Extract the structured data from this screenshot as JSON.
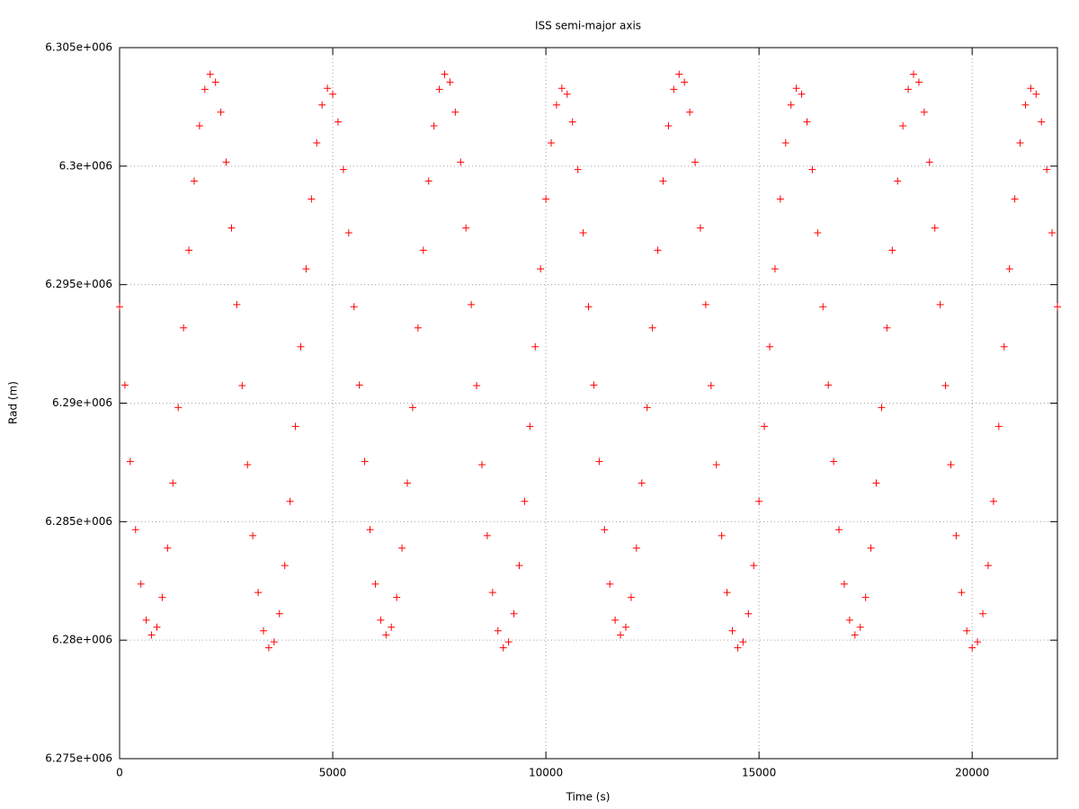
{
  "chart_data": {
    "type": "scatter",
    "title": "ISS semi-major axis",
    "x_label": "Time (s)",
    "y_label": "Rad (m)",
    "xlim": [
      0,
      22000
    ],
    "xticks": [
      0,
      5000,
      10000,
      15000,
      20000
    ],
    "ylim": [
      6275000,
      6305000
    ],
    "yticks": [
      {
        "value": 6275000,
        "label": "6.275e+006"
      },
      {
        "value": 6280000,
        "label": "6.28e+006"
      },
      {
        "value": 6285000,
        "label": "6.285e+006"
      },
      {
        "value": 6290000,
        "label": "6.29e+006"
      },
      {
        "value": 6295000,
        "label": "6.295e+006"
      },
      {
        "value": 6300000,
        "label": "6.3e+006"
      },
      {
        "value": 6305000,
        "label": "6.305e+006"
      }
    ],
    "grid": true,
    "series": [
      {
        "color": "#ff0000",
        "x": [
          0,
          125,
          250,
          375,
          500,
          625,
          750,
          875,
          1000,
          1125,
          1250,
          1375,
          1500,
          1625,
          1750,
          1875,
          2000,
          2125,
          2250,
          2375,
          2500,
          2625,
          2750,
          2875,
          3000,
          3125,
          3250,
          3375,
          3500,
          3625,
          3750,
          3875,
          4000,
          4125,
          4250,
          4375,
          4500,
          4625,
          4750,
          4875,
          5000,
          5125,
          5250,
          5375,
          5500,
          5625,
          5750,
          5875,
          6000,
          6125,
          6250,
          6375,
          6500,
          6625,
          6750,
          6875,
          7000,
          7125,
          7250,
          7375,
          7500,
          7625,
          7750,
          7875,
          8000,
          8125,
          8250,
          8375,
          8500,
          8625,
          8750,
          8875,
          9000,
          9125,
          9250,
          9375,
          9500,
          9625,
          9750,
          9875,
          10000,
          10125,
          10250,
          10375,
          10500,
          10625,
          10750,
          10875,
          11000,
          11125,
          11250,
          11375,
          11500,
          11625,
          11750,
          11875,
          12000,
          12125,
          12250,
          12375,
          12500,
          12625,
          12750,
          12875,
          13000,
          13125,
          13250,
          13375,
          13500,
          13625,
          13750,
          13875,
          14000,
          14125,
          14250,
          14375,
          14500,
          14625,
          14750,
          14875,
          15000,
          15125,
          15250,
          15375,
          15500,
          15625,
          15750,
          15875,
          16000,
          16125,
          16250,
          16375,
          16500,
          16625,
          16750,
          16875,
          17000,
          17125,
          17250,
          17375,
          17500,
          17625,
          17750,
          17875,
          18000,
          18125,
          18250,
          18375,
          18500,
          18625,
          18750,
          18875,
          19000,
          19125,
          19250,
          19375,
          19500,
          19625,
          19750,
          19875,
          20000,
          20125,
          20250,
          20375,
          20500,
          20625,
          20750,
          20875,
          21000,
          21125,
          21250,
          21375,
          21500,
          21625,
          21750,
          21875,
          22000
        ],
        "values": [
          6294068,
          6290763,
          6287540,
          6284660,
          6282366,
          6280845,
          6280219,
          6280548,
          6281802,
          6283884,
          6286629,
          6289813,
          6293178,
          6296452,
          6299374,
          6301699,
          6303241,
          6303876,
          6303545,
          6302278,
          6300170,
          6297390,
          6294160,
          6290741,
          6287404,
          6284412,
          6282014,
          6280393,
          6279679,
          6279928,
          6281116,
          6283148,
          6285855,
          6289019,
          6292378,
          6295664,
          6298614,
          6300981,
          6302581,
          6303286,
          6303039,
          6301864,
          6299858,
          6297186,
          6294068,
          6290763,
          6287540,
          6284660,
          6282366,
          6280845,
          6280219,
          6280548,
          6281802,
          6283884,
          6286629,
          6289813,
          6293178,
          6296452,
          6299374,
          6301699,
          6303241,
          6303876,
          6303545,
          6302278,
          6300170,
          6297390,
          6294160,
          6290741,
          6287404,
          6284412,
          6282014,
          6280393,
          6279679,
          6279928,
          6281116,
          6283148,
          6285855,
          6289019,
          6292378,
          6295664,
          6298614,
          6300981,
          6302581,
          6303286,
          6303039,
          6301864,
          6299858,
          6297186,
          6294068,
          6290763,
          6287540,
          6284660,
          6282366,
          6280845,
          6280219,
          6280548,
          6281802,
          6283884,
          6286629,
          6289813,
          6293178,
          6296452,
          6299374,
          6301699,
          6303241,
          6303876,
          6303545,
          6302278,
          6300170,
          6297390,
          6294160,
          6290741,
          6287404,
          6284412,
          6282014,
          6280393,
          6279679,
          6279928,
          6281116,
          6283148,
          6285855,
          6289019,
          6292378,
          6295664,
          6298614,
          6300981,
          6302581,
          6303286,
          6303039,
          6301864,
          6299858,
          6297186,
          6294068,
          6290763,
          6287540,
          6284660,
          6282366,
          6280845,
          6280219,
          6280548,
          6281802,
          6283884,
          6286629,
          6289813,
          6293178,
          6296452,
          6299374,
          6301699,
          6303241,
          6303876,
          6303545,
          6302278,
          6300170,
          6297390,
          6294160,
          6290741,
          6287404,
          6284412,
          6282014,
          6280393,
          6279679,
          6279928,
          6281116,
          6283148,
          6285855,
          6289019,
          6292378,
          6295664,
          6298614,
          6300981,
          6302581,
          6303286,
          6303039,
          6301864,
          6299858,
          6297186,
          6294068
        ]
      }
    ]
  }
}
